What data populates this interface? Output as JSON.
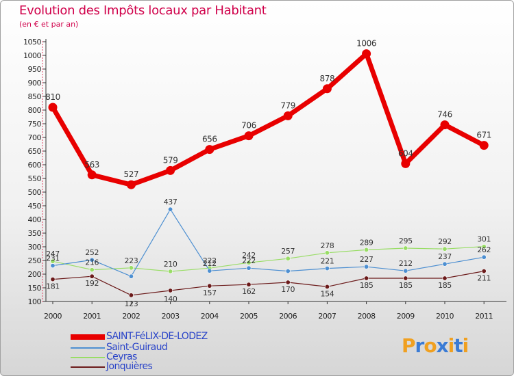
{
  "chart_data": {
    "type": "line",
    "title": "Evolution des Impôts locaux par Habitant",
    "subtitle": "(en € et par an)",
    "xlabel": "",
    "ylabel": "",
    "ylim": [
      100,
      1050
    ],
    "ytick_step": 50,
    "categories": [
      "2000",
      "2001",
      "2002",
      "2003",
      "2004",
      "2005",
      "2006",
      "2007",
      "2008",
      "2009",
      "2010",
      "2011"
    ],
    "series": [
      {
        "name": "SAINT-FéLIX-DE-LODEZ",
        "color": "#e80000",
        "values": [
          810,
          563,
          527,
          579,
          656,
          706,
          779,
          878,
          1006,
          604,
          746,
          671
        ]
      },
      {
        "name": "Saint-Guiraud",
        "color": "#4d8fd1",
        "values": [
          231,
          252,
          192,
          437,
          212,
          222,
          211,
          221,
          227,
          212,
          237,
          262
        ]
      },
      {
        "name": "Ceyras",
        "color": "#99dd66",
        "values": [
          247,
          216,
          223,
          210,
          222,
          242,
          257,
          278,
          289,
          295,
          292,
          301
        ]
      },
      {
        "name": "Jonquières",
        "color": "#6b1a1a",
        "values": [
          181,
          192,
          123,
          140,
          157,
          162,
          170,
          154,
          185,
          185,
          185,
          211
        ]
      }
    ],
    "data_labels": [
      [
        "810",
        "563",
        "527",
        "579",
        "656",
        "706",
        "779",
        "878",
        "1006",
        "604",
        "746",
        "671"
      ],
      [
        "231",
        "252",
        "",
        "437",
        "212",
        "222",
        "",
        "221",
        "227",
        "212",
        "237",
        "262"
      ],
      [
        "247",
        "216",
        "223",
        "210",
        "222",
        "242",
        "257",
        "278",
        "289",
        "295",
        "292",
        "301"
      ],
      [
        "181",
        "192",
        "123",
        "140",
        "157",
        "162",
        "170",
        "154",
        "185",
        "185",
        "185",
        "211"
      ]
    ],
    "legend_position": "bottom-left",
    "grid": false
  },
  "brand": {
    "letters": [
      "P",
      "r",
      "o",
      "x",
      "i",
      "t",
      "i"
    ],
    "colors": [
      "#f0a020",
      "#3a7bd5",
      "#f0a020",
      "#3a7bd5",
      "#f0a020",
      "#3a7bd5",
      "#f0a020"
    ]
  }
}
